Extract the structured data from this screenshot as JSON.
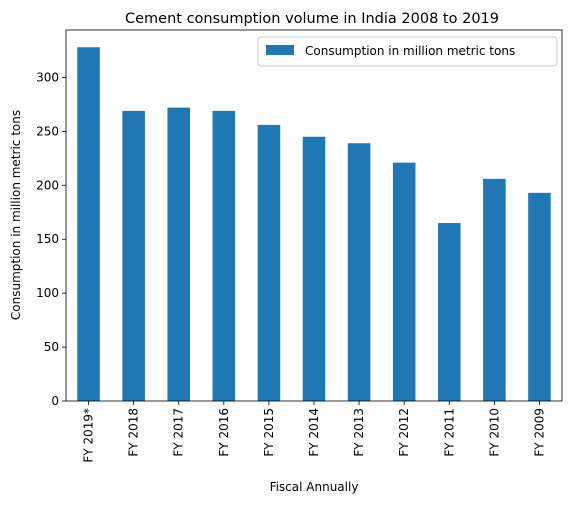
{
  "chart_data": {
    "type": "bar",
    "title": "Cement consumption volume in India 2008 to 2019",
    "xlabel": "Fiscal Annually",
    "ylabel": "Consumption in million metric tons",
    "categories": [
      "FY 2019*",
      "FY 2018",
      "FY 2017",
      "FY 2016",
      "FY 2015",
      "FY 2014",
      "FY 2013",
      "FY 2012",
      "FY 2011",
      "FY 2010",
      "FY 2009"
    ],
    "series": [
      {
        "name": "Consumption in million metric tons",
        "values": [
          328,
          269,
          272,
          269,
          256,
          245,
          239,
          221,
          165,
          206,
          193
        ],
        "color": "#1f77b4"
      }
    ],
    "ylim": [
      0,
      344
    ],
    "yticks": [
      0,
      50,
      100,
      150,
      200,
      250,
      300
    ],
    "grid": false,
    "legend": "top-right"
  }
}
